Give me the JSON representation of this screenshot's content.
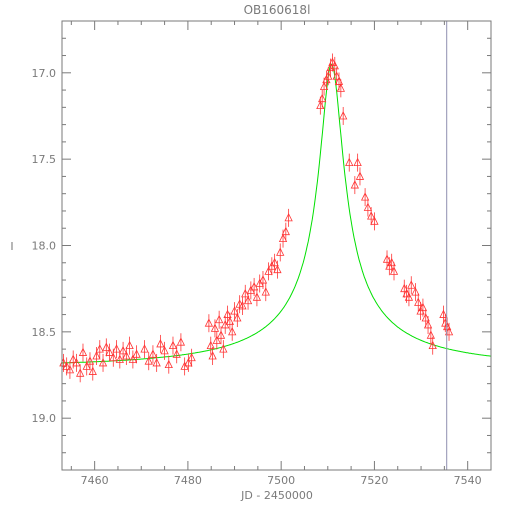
{
  "chart_data": {
    "type": "scatter",
    "title": "OB160618l",
    "xlabel": "JD - 2450000",
    "ylabel": "I",
    "xlim": [
      7453,
      7545
    ],
    "ylim": [
      19.3,
      16.7
    ],
    "y_inverted": true,
    "x_ticks": [
      7460,
      7480,
      7500,
      7520,
      7540
    ],
    "y_ticks": [
      17.0,
      17.5,
      18.0,
      18.5,
      19.0
    ],
    "x_tick_labels": [
      "7460",
      "7480",
      "7500",
      "7520",
      "7540"
    ],
    "y_tick_labels": [
      "17.0",
      "17.5",
      "18.0",
      "18.5",
      "19.0"
    ],
    "grid": false,
    "vertical_line_x": 7535.5,
    "colors": {
      "axes": "#7a7a7a",
      "points": "#ff3333",
      "model": "#00e000",
      "vline": "#9090b0"
    },
    "model_curve": {
      "type": "paczynski",
      "t0": 7510.8,
      "u0": 0.055,
      "tE": 45,
      "I_base": 18.7,
      "I_peak": 16.95
    },
    "series": [
      {
        "marker": "open-triangle",
        "x": [
          7453.3,
          7454.0,
          7454.7,
          7455.4,
          7456.1,
          7456.9,
          7457.5,
          7458.3,
          7459.0,
          7459.6,
          7460.4,
          7461.1,
          7461.8,
          7462.5,
          7463.2,
          7464.0,
          7464.7,
          7465.4,
          7466.1,
          7466.8,
          7467.5,
          7468.2,
          7469.0,
          7470.7,
          7471.6,
          7472.5,
          7473.3,
          7474.1,
          7475.0,
          7475.9,
          7476.8,
          7477.6,
          7478.5,
          7479.3,
          7480.1,
          7480.8,
          7484.5,
          7484.9,
          7485.3,
          7485.8,
          7486.2,
          7486.7,
          7487.1,
          7487.6,
          7488.0,
          7488.5,
          7489.0,
          7489.5,
          7490.0,
          7490.6,
          7491.1,
          7491.7,
          7492.3,
          7492.9,
          7493.5,
          7494.2,
          7494.8,
          7495.4,
          7496.1,
          7496.7,
          7497.3,
          7498.0,
          7498.6,
          7499.2,
          7499.8,
          7500.4,
          7501.0,
          7501.6,
          7508.4,
          7508.8,
          7509.2,
          7509.7,
          7510.1,
          7510.6,
          7511.0,
          7511.5,
          7511.9,
          7512.4,
          7512.8,
          7513.3,
          7514.6,
          7515.8,
          7516.4,
          7516.9,
          7518.0,
          7518.6,
          7519.3,
          7520.0,
          7522.7,
          7523.2,
          7523.7,
          7524.2,
          7526.4,
          7526.9,
          7527.4,
          7527.9,
          7528.8,
          7529.4,
          7529.9,
          7530.4,
          7531.0,
          7531.5,
          7532.1,
          7532.5,
          7534.8,
          7535.2,
          7535.6,
          7536.0
        ],
        "y": [
          18.68,
          18.7,
          18.72,
          18.66,
          18.68,
          18.74,
          18.62,
          18.7,
          18.67,
          18.73,
          18.64,
          18.6,
          18.68,
          18.59,
          18.62,
          18.65,
          18.6,
          18.66,
          18.61,
          18.64,
          18.58,
          18.66,
          18.63,
          18.6,
          18.67,
          18.63,
          18.68,
          18.57,
          18.61,
          18.69,
          18.58,
          18.63,
          18.56,
          18.7,
          18.68,
          18.65,
          18.45,
          18.58,
          18.64,
          18.48,
          18.55,
          18.43,
          18.52,
          18.6,
          18.46,
          18.4,
          18.44,
          18.5,
          18.38,
          18.42,
          18.34,
          18.35,
          18.28,
          18.32,
          18.26,
          18.24,
          18.3,
          18.22,
          18.2,
          18.27,
          18.15,
          18.12,
          18.1,
          18.14,
          18.04,
          17.96,
          17.92,
          17.84,
          17.19,
          17.15,
          17.08,
          17.04,
          17.02,
          16.97,
          16.94,
          16.96,
          17.02,
          17.05,
          17.09,
          17.25,
          17.52,
          17.65,
          17.52,
          17.6,
          17.72,
          17.78,
          17.83,
          17.86,
          18.08,
          18.12,
          18.1,
          18.15,
          18.25,
          18.28,
          18.3,
          18.23,
          18.27,
          18.33,
          18.38,
          18.36,
          18.42,
          18.46,
          18.52,
          18.58,
          18.4,
          18.45,
          18.47,
          18.5
        ]
      }
    ]
  }
}
